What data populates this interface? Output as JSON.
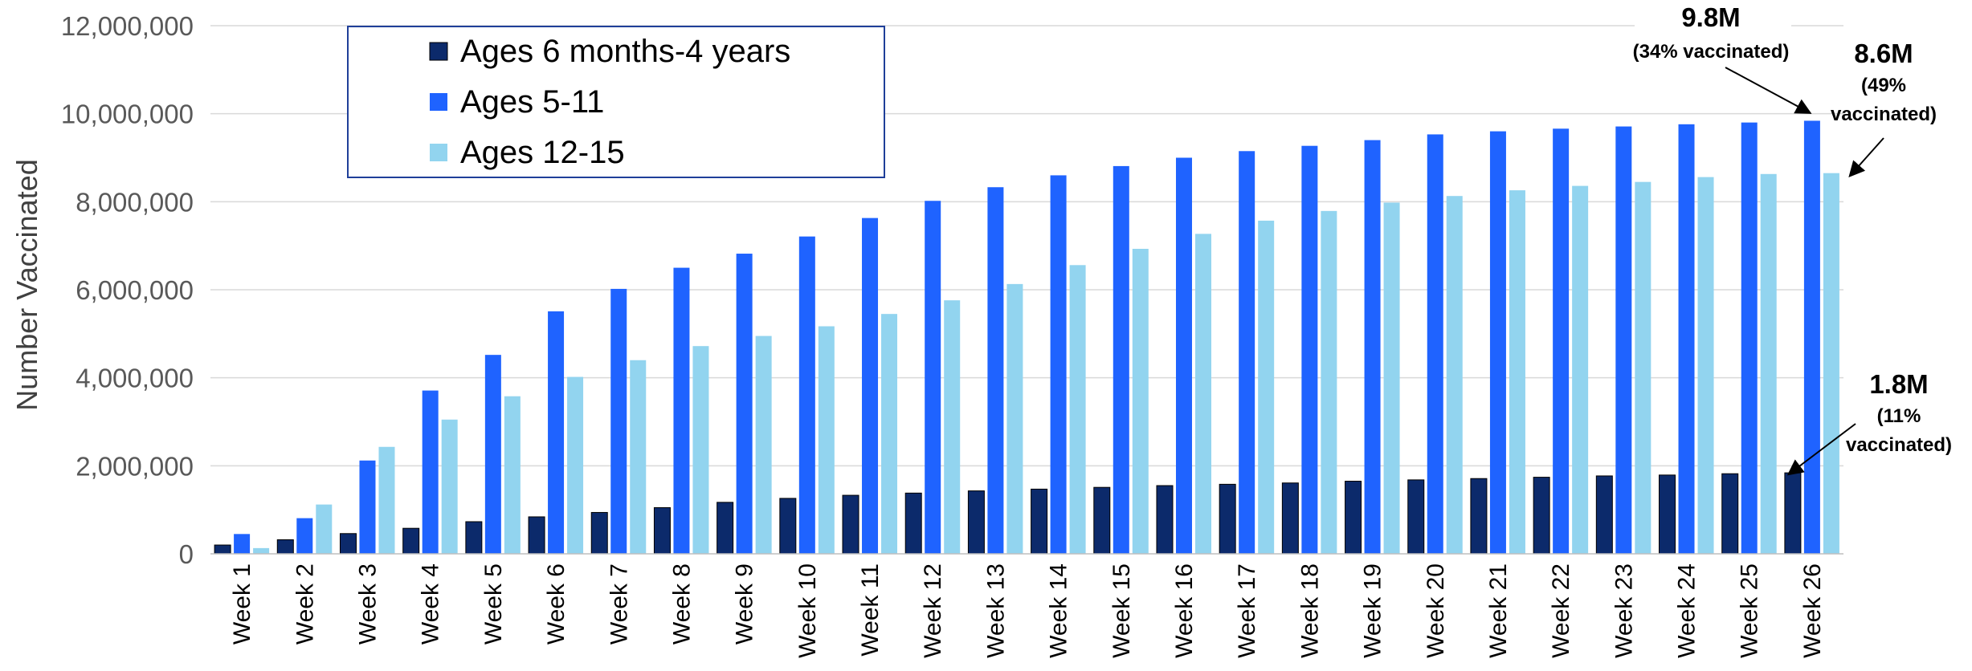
{
  "chart_data": {
    "type": "bar",
    "title": "",
    "xlabel": "",
    "ylabel": "Number Vaccinated",
    "ylim": [
      0,
      12000000
    ],
    "yticks": [
      0,
      2000000,
      4000000,
      6000000,
      8000000,
      10000000,
      12000000
    ],
    "ytick_labels": [
      "0",
      "2,000,000",
      "4,000,000",
      "6,000,000",
      "8,000,000",
      "10,000,000",
      "12,000,000"
    ],
    "grid": true,
    "legend_position": "top-left",
    "categories": [
      "Week 1",
      "Week 2",
      "Week 3",
      "Week 4",
      "Week 5",
      "Week 6",
      "Week 7",
      "Week 8",
      "Week 9",
      "Week 10",
      "Week 11",
      "Week 12",
      "Week 13",
      "Week 14",
      "Week 15",
      "Week 16",
      "Week 17",
      "Week 18",
      "Week 19",
      "Week 20",
      "Week 21",
      "Week 22",
      "Week 23",
      "Week 24",
      "Week 25",
      "Week 26"
    ],
    "series": [
      {
        "name": "Ages 6 months-4 years",
        "color": "#0c2a6b",
        "values": [
          200000,
          320000,
          460000,
          580000,
          730000,
          840000,
          940000,
          1050000,
          1170000,
          1260000,
          1330000,
          1380000,
          1430000,
          1470000,
          1510000,
          1550000,
          1580000,
          1610000,
          1650000,
          1680000,
          1710000,
          1740000,
          1770000,
          1790000,
          1820000,
          1840000
        ]
      },
      {
        "name": "Ages 5-11",
        "color": "#1f63ff",
        "values": [
          450000,
          810000,
          2120000,
          3710000,
          4520000,
          5510000,
          6020000,
          6500000,
          6820000,
          7210000,
          7630000,
          8020000,
          8330000,
          8600000,
          8810000,
          9000000,
          9150000,
          9270000,
          9400000,
          9530000,
          9600000,
          9660000,
          9710000,
          9760000,
          9800000,
          9840000
        ]
      },
      {
        "name": "Ages 12-15",
        "color": "#92d4ef",
        "values": [
          130000,
          1120000,
          2430000,
          3050000,
          3580000,
          4020000,
          4400000,
          4720000,
          4950000,
          5170000,
          5450000,
          5760000,
          6130000,
          6560000,
          6930000,
          7270000,
          7570000,
          7790000,
          7980000,
          8130000,
          8260000,
          8360000,
          8450000,
          8560000,
          8630000,
          8650000
        ]
      }
    ],
    "annotations": [
      {
        "id": "five_eleven",
        "big": "9.8M",
        "small": [
          "(34% vaccinated)"
        ],
        "series": 1,
        "point": 25
      },
      {
        "id": "twelve_fifteen",
        "big": "8.6M",
        "small": [
          "(49%",
          "vaccinated)"
        ],
        "series": 2,
        "point": 25
      },
      {
        "id": "six_months",
        "big": "1.8M",
        "small": [
          "(11%",
          "vaccinated)"
        ],
        "series": 0,
        "point": 25
      }
    ]
  }
}
